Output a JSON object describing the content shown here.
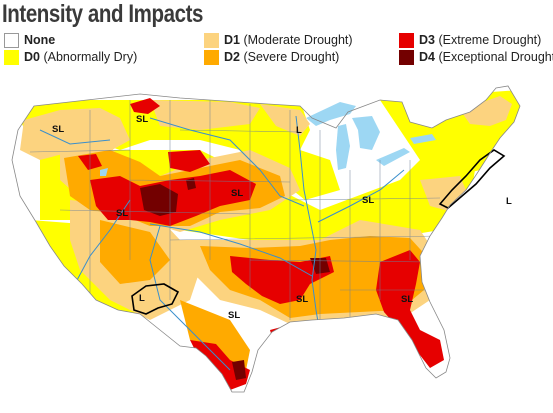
{
  "title": "Intensity and Impacts",
  "legend": [
    {
      "code": "",
      "label": "None",
      "color": "#ffffff"
    },
    {
      "code": "D0",
      "label": "(Abnormally Dry)",
      "color": "#ffff00"
    },
    {
      "code": "D1",
      "label": "(Moderate Drought)",
      "color": "#fcd37f"
    },
    {
      "code": "D2",
      "label": "(Severe Drought)",
      "color": "#ffaa00"
    },
    {
      "code": "D3",
      "label": "(Extreme Drought)",
      "color": "#e60000"
    },
    {
      "code": "D4",
      "label": "(Exceptional Drought)",
      "color": "#730000"
    }
  ],
  "impact_labels": [
    "SL",
    "SL",
    "L",
    "SL",
    "SL",
    "SL",
    "L",
    "L",
    "SL",
    "SL",
    "SL"
  ],
  "colors": {
    "water": "#9dd7f3",
    "river": "#3a8fcc",
    "state_line": "#6b7f99",
    "outline": "#000000"
  }
}
